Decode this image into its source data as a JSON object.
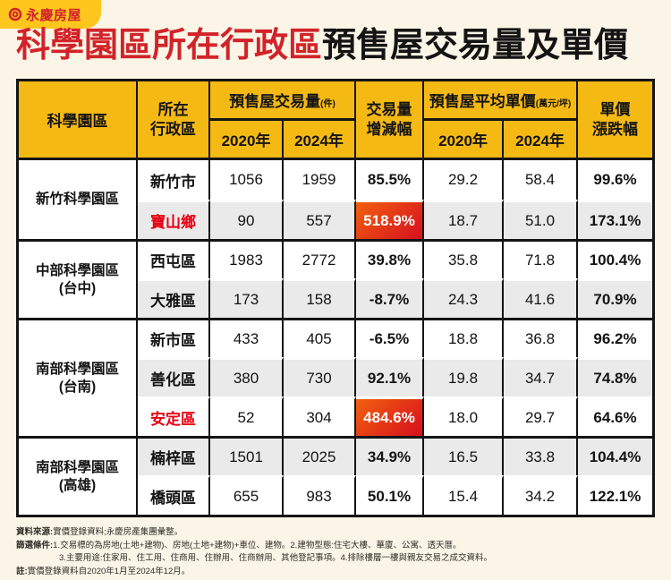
{
  "colors": {
    "background_cream": "#FAF5E6",
    "brand_yellow": "#FFC61E",
    "header_yellow": "#F5B914",
    "title_red": "#D2232A",
    "district_red": "#E60012",
    "hot_gradient_start": "#F2600F",
    "hot_gradient_end": "#D60F1E",
    "shade_gray": "#EAEAEA",
    "border_black": "#141414"
  },
  "brand": {
    "logo_text": "永慶房屋"
  },
  "title": {
    "highlight": "科學園區所在行政區",
    "rest": "預售屋交易量及單價"
  },
  "table_header": {
    "park": "科學園區",
    "district": "所在\n行政區",
    "volume": "預售屋交易量",
    "volume_unit": "(件)",
    "volume_change": "交易量\n增減幅",
    "price": "預售屋平均單價",
    "price_unit": "(萬元/坪)",
    "price_change": "單價\n漲跌幅",
    "y2020a": "2020年",
    "y2024a": "2024年",
    "y2020b": "2020年",
    "y2024b": "2024年"
  },
  "chart_data": {
    "type": "table",
    "title": "科學園區所在行政區預售屋交易量及單價",
    "columns": [
      "科學園區",
      "所在行政區",
      "預售屋交易量(件) 2020年",
      "預售屋交易量(件) 2024年",
      "交易量增減幅",
      "預售屋平均單價(萬元/坪) 2020年",
      "預售屋平均單價(萬元/坪) 2024年",
      "單價漲跌幅"
    ],
    "groups": [
      {
        "park": "新竹科學園區",
        "rows": [
          {
            "district": "新竹市",
            "highlight": false,
            "v2020": "1056",
            "v2024": "1959",
            "change": "85.5%",
            "hot": false,
            "p2020": "29.2",
            "p2024": "58.4",
            "pchange": "99.6%"
          },
          {
            "district": "寶山鄉",
            "highlight": true,
            "v2020": "90",
            "v2024": "557",
            "change": "518.9%",
            "hot": true,
            "p2020": "18.7",
            "p2024": "51.0",
            "pchange": "173.1%"
          }
        ]
      },
      {
        "park": "中部科學園區\n(台中)",
        "rows": [
          {
            "district": "西屯區",
            "highlight": false,
            "v2020": "1983",
            "v2024": "2772",
            "change": "39.8%",
            "hot": false,
            "p2020": "35.8",
            "p2024": "71.8",
            "pchange": "100.4%"
          },
          {
            "district": "大雅區",
            "highlight": false,
            "v2020": "173",
            "v2024": "158",
            "change": "-8.7%",
            "hot": false,
            "p2020": "24.3",
            "p2024": "41.6",
            "pchange": "70.9%"
          }
        ]
      },
      {
        "park": "南部科學園區\n(台南)",
        "rows": [
          {
            "district": "新市區",
            "highlight": false,
            "v2020": "433",
            "v2024": "405",
            "change": "-6.5%",
            "hot": false,
            "p2020": "18.8",
            "p2024": "36.8",
            "pchange": "96.2%"
          },
          {
            "district": "善化區",
            "highlight": false,
            "v2020": "380",
            "v2024": "730",
            "change": "92.1%",
            "hot": false,
            "p2020": "19.8",
            "p2024": "34.7",
            "pchange": "74.8%"
          },
          {
            "district": "安定區",
            "highlight": true,
            "v2020": "52",
            "v2024": "304",
            "change": "484.6%",
            "hot": true,
            "p2020": "18.0",
            "p2024": "29.7",
            "pchange": "64.6%"
          }
        ]
      },
      {
        "park": "南部科學園區\n(高雄)",
        "rows": [
          {
            "district": "楠梓區",
            "highlight": false,
            "v2020": "1501",
            "v2024": "2025",
            "change": "34.9%",
            "hot": false,
            "p2020": "16.5",
            "p2024": "33.8",
            "pchange": "104.4%"
          },
          {
            "district": "橋頭區",
            "highlight": false,
            "v2020": "655",
            "v2024": "983",
            "change": "50.1%",
            "hot": false,
            "p2020": "15.4",
            "p2024": "34.2",
            "pchange": "122.1%"
          }
        ]
      }
    ]
  },
  "footer": {
    "lines": [
      {
        "label": "資料來源:",
        "text": "實價登錄資料;永慶房產集團彙整。"
      },
      {
        "label": "篩選條件:",
        "text": "1.交易標的為房地(土地+建物)、房地(土地+建物)+車位、建物。2.建物型態:住宅大樓、華廈、公寓、透天厝。"
      },
      {
        "label": "",
        "text": "3.主要用途:住家用、住工用、住商用、住辦用、住商辦用、其他登記事項。4.排除樓層一樓與親友交易之成交資料。"
      },
      {
        "label": "註:",
        "text": "實價登錄資料自2020年1月至2024年12月。"
      }
    ]
  }
}
